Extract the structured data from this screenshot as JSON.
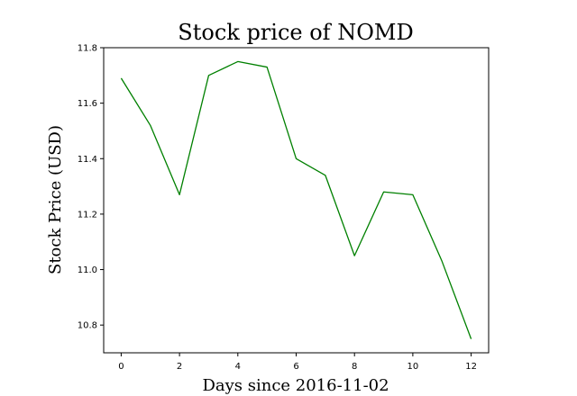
{
  "chart_data": {
    "type": "line",
    "title": "Stock price of NOMD",
    "xlabel": "Days since 2016-11-02",
    "ylabel": "Stock Price (USD)",
    "x": [
      0,
      1,
      2,
      3,
      4,
      5,
      6,
      7,
      8,
      9,
      10,
      11,
      12
    ],
    "series": [
      {
        "values": [
          11.69,
          11.52,
          11.27,
          11.7,
          11.75,
          11.73,
          11.4,
          11.34,
          11.05,
          11.28,
          11.27,
          11.03,
          10.75
        ],
        "color": "#008000"
      }
    ],
    "xlim": [
      -0.6,
      12.6
    ],
    "ylim": [
      10.7,
      11.8
    ],
    "xticks": [
      0,
      2,
      4,
      6,
      8,
      10,
      12
    ],
    "xtick_labels": [
      "0",
      "2",
      "4",
      "6",
      "8",
      "10",
      "12"
    ],
    "yticks": [
      10.8,
      11.0,
      11.2,
      11.4,
      11.6,
      11.8
    ],
    "ytick_labels": [
      "10.8",
      "11.0",
      "11.2",
      "11.4",
      "11.6",
      "11.8"
    ],
    "grid": false,
    "legend": "none"
  }
}
